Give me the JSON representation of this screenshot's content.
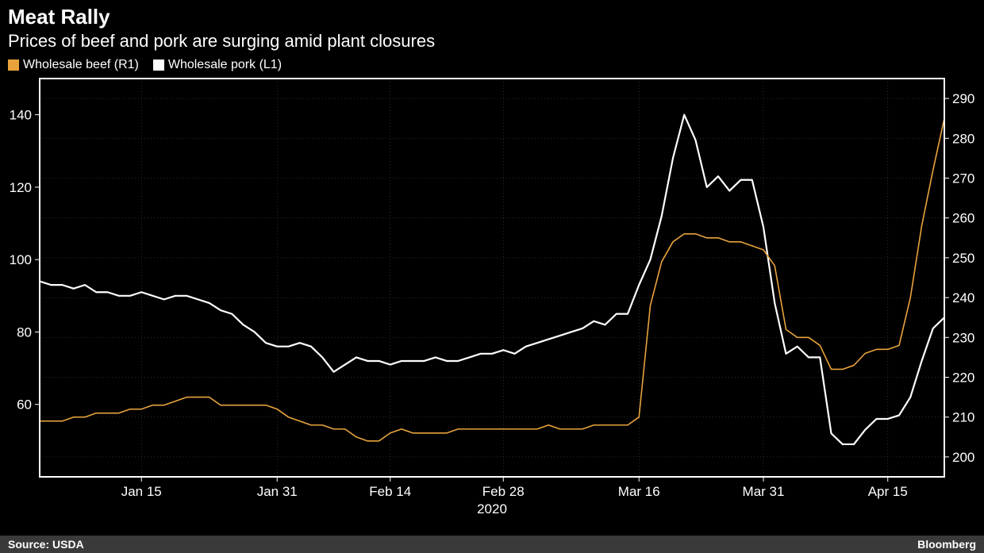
{
  "header": {
    "title": "Meat Rally",
    "subtitle": "Prices of beef and pork are surging amid plant closures"
  },
  "legend": [
    {
      "label": "Wholesale beef (R1)",
      "color": "#e8a33d"
    },
    {
      "label": "Wholesale pork (L1)",
      "color": "#ffffff"
    }
  ],
  "footer": {
    "source": "Source: USDA",
    "brand": "Bloomberg"
  },
  "chart": {
    "type": "line",
    "background_color": "#000000",
    "plot_border_color": "#ffffff",
    "plot_border_width": 2,
    "grid_color": "#555555",
    "grid_width": 0.5,
    "text_color": "#ffffff",
    "font_size_ticks": 17,
    "font_size_year": 17,
    "x_axis": {
      "year_label": "2020",
      "index_min": 0,
      "index_max": 80,
      "ticks": [
        {
          "index": 9,
          "label": "Jan 15"
        },
        {
          "index": 21,
          "label": "Jan 31"
        },
        {
          "index": 31,
          "label": "Feb 14"
        },
        {
          "index": 41,
          "label": "Feb 28"
        },
        {
          "index": 53,
          "label": "Mar 16"
        },
        {
          "index": 64,
          "label": "Mar 31"
        },
        {
          "index": 75,
          "label": "Apr 15"
        }
      ]
    },
    "left_axis": {
      "min": 40,
      "max": 150,
      "tick_step": 20,
      "ticks": [
        60,
        80,
        100,
        120,
        140
      ]
    },
    "right_axis": {
      "min": 195,
      "max": 295,
      "tick_step": 10,
      "ticks": [
        200,
        210,
        220,
        230,
        240,
        250,
        260,
        270,
        280,
        290
      ]
    },
    "series": [
      {
        "name": "Wholesale pork (L1)",
        "axis": "left",
        "color": "#ffffff",
        "line_width": 2.2,
        "data": [
          94,
          93,
          93,
          92,
          93,
          91,
          91,
          90,
          90,
          91,
          90,
          89,
          90,
          90,
          89,
          88,
          86,
          85,
          82,
          80,
          77,
          76,
          76,
          77,
          76,
          73,
          69,
          71,
          73,
          72,
          72,
          71,
          72,
          72,
          72,
          73,
          72,
          72,
          73,
          74,
          74,
          75,
          74,
          76,
          77,
          78,
          79,
          80,
          81,
          83,
          82,
          85,
          85,
          93,
          100,
          112,
          128,
          140,
          133,
          120,
          123,
          119,
          122,
          122,
          109,
          88,
          74,
          76,
          73,
          73,
          52,
          49,
          49,
          53,
          56,
          56,
          57,
          62,
          72,
          81,
          84
        ]
      },
      {
        "name": "Wholesale beef (R1)",
        "axis": "right",
        "color": "#e8a33d",
        "line_width": 1.6,
        "data": [
          209,
          209,
          209,
          210,
          210,
          211,
          211,
          211,
          212,
          212,
          213,
          213,
          214,
          215,
          215,
          215,
          213,
          213,
          213,
          213,
          213,
          212,
          210,
          209,
          208,
          208,
          207,
          207,
          205,
          204,
          204,
          206,
          207,
          206,
          206,
          206,
          206,
          207,
          207,
          207,
          207,
          207,
          207,
          207,
          207,
          208,
          207,
          207,
          207,
          208,
          208,
          208,
          208,
          210,
          238,
          249,
          254,
          256,
          256,
          255,
          255,
          254,
          254,
          253,
          252,
          248,
          232,
          230,
          230,
          228,
          222,
          222,
          223,
          226,
          227,
          227,
          228,
          240,
          258,
          272,
          285
        ]
      }
    ]
  }
}
